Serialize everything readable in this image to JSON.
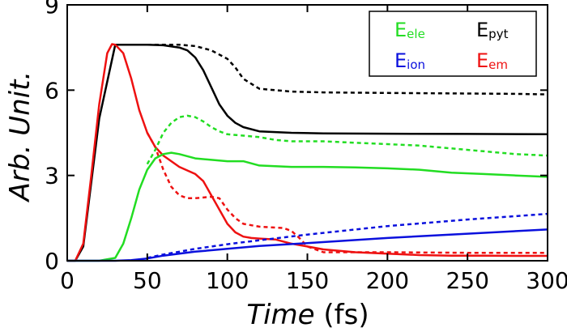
{
  "chart_data": {
    "type": "line",
    "title": "",
    "xlabel_italic": "Time",
    "xlabel_unit": " (fs)",
    "ylabel": "Arb. Unit.",
    "xlim": [
      0,
      300
    ],
    "ylim": [
      0,
      9
    ],
    "xticks": [
      0,
      50,
      100,
      150,
      200,
      250,
      300
    ],
    "yticks": [
      0,
      3,
      6,
      9
    ],
    "grid": false,
    "legend_position": "top-right",
    "legend": [
      {
        "main": "E",
        "sub": "ele",
        "color": "#22dd22"
      },
      {
        "main": "E",
        "sub": "pyt",
        "color": "#000000"
      },
      {
        "main": "E",
        "sub": "ion",
        "color": "#0a10dd"
      },
      {
        "main": "E",
        "sub": "em",
        "color": "#ee1111"
      }
    ],
    "series": [
      {
        "key": "pyt_solid",
        "color": "#000000",
        "dash": false,
        "x": [
          0,
          5,
          10,
          20,
          30,
          50,
          60,
          70,
          75,
          80,
          85,
          90,
          95,
          100,
          105,
          110,
          120,
          140,
          160,
          200,
          250,
          300
        ],
        "y": [
          0,
          0,
          0.5,
          5.0,
          7.6,
          7.6,
          7.58,
          7.5,
          7.4,
          7.15,
          6.7,
          6.1,
          5.5,
          5.1,
          4.85,
          4.7,
          4.55,
          4.5,
          4.48,
          4.47,
          4.46,
          4.45
        ]
      },
      {
        "key": "pyt_dotted",
        "color": "#000000",
        "dash": true,
        "x": [
          50,
          70,
          80,
          90,
          100,
          105,
          110,
          120,
          140,
          160,
          200,
          250,
          280,
          300
        ],
        "y": [
          7.6,
          7.6,
          7.55,
          7.4,
          7.1,
          6.8,
          6.4,
          6.05,
          5.95,
          5.92,
          5.9,
          5.88,
          5.87,
          5.85
        ]
      },
      {
        "key": "em_solid",
        "color": "#ee1111",
        "dash": false,
        "x": [
          0,
          5,
          10,
          15,
          20,
          25,
          28,
          30,
          35,
          40,
          45,
          50,
          55,
          60,
          70,
          80,
          85,
          90,
          100,
          105,
          110,
          115,
          120,
          130,
          140,
          150,
          160,
          180,
          200,
          220,
          240,
          260,
          280,
          300
        ],
        "y": [
          0,
          0,
          0.6,
          3.0,
          5.5,
          7.3,
          7.62,
          7.6,
          7.3,
          6.4,
          5.3,
          4.5,
          4.0,
          3.7,
          3.3,
          3.05,
          2.8,
          2.3,
          1.3,
          1.0,
          0.85,
          0.8,
          0.78,
          0.75,
          0.6,
          0.5,
          0.4,
          0.3,
          0.25,
          0.2,
          0.18,
          0.18,
          0.17,
          0.17
        ]
      },
      {
        "key": "em_dotted",
        "color": "#ee1111",
        "dash": true,
        "x": [
          50,
          55,
          60,
          65,
          70,
          75,
          80,
          90,
          95,
          100,
          105,
          110,
          120,
          135,
          140,
          145,
          150,
          160,
          180,
          200,
          250,
          300
        ],
        "y": [
          4.5,
          4.0,
          3.2,
          2.6,
          2.3,
          2.2,
          2.2,
          2.25,
          2.2,
          1.8,
          1.5,
          1.3,
          1.2,
          1.15,
          1.05,
          0.8,
          0.5,
          0.3,
          0.3,
          0.3,
          0.28,
          0.28
        ]
      },
      {
        "key": "ele_solid",
        "color": "#22dd22",
        "dash": false,
        "x": [
          0,
          20,
          30,
          35,
          40,
          45,
          50,
          55,
          60,
          65,
          70,
          80,
          90,
          100,
          110,
          120,
          140,
          160,
          180,
          200,
          220,
          240,
          260,
          280,
          300
        ],
        "y": [
          0,
          0,
          0.1,
          0.6,
          1.5,
          2.5,
          3.2,
          3.6,
          3.75,
          3.8,
          3.75,
          3.6,
          3.55,
          3.5,
          3.5,
          3.35,
          3.3,
          3.3,
          3.28,
          3.25,
          3.2,
          3.1,
          3.05,
          3.0,
          2.95
        ]
      },
      {
        "key": "ele_dotted",
        "color": "#22dd22",
        "dash": true,
        "x": [
          50,
          55,
          60,
          65,
          70,
          75,
          80,
          85,
          90,
          95,
          100,
          110,
          120,
          130,
          140,
          160,
          180,
          200,
          220,
          240,
          260,
          280,
          300
        ],
        "y": [
          3.4,
          3.9,
          4.5,
          4.85,
          5.05,
          5.1,
          5.05,
          4.9,
          4.7,
          4.55,
          4.45,
          4.4,
          4.35,
          4.25,
          4.2,
          4.2,
          4.15,
          4.1,
          4.05,
          3.95,
          3.85,
          3.75,
          3.7
        ]
      },
      {
        "key": "ion_solid",
        "color": "#0a10dd",
        "dash": false,
        "x": [
          0,
          30,
          40,
          50,
          60,
          80,
          100,
          120,
          150,
          200,
          250,
          300
        ],
        "y": [
          0,
          0,
          0.02,
          0.08,
          0.18,
          0.32,
          0.42,
          0.52,
          0.62,
          0.8,
          0.95,
          1.1
        ]
      },
      {
        "key": "ion_dotted",
        "color": "#0a10dd",
        "dash": true,
        "x": [
          50,
          60,
          80,
          100,
          120,
          150,
          200,
          250,
          300
        ],
        "y": [
          0.1,
          0.22,
          0.42,
          0.58,
          0.72,
          0.92,
          1.22,
          1.45,
          1.65
        ]
      }
    ]
  }
}
